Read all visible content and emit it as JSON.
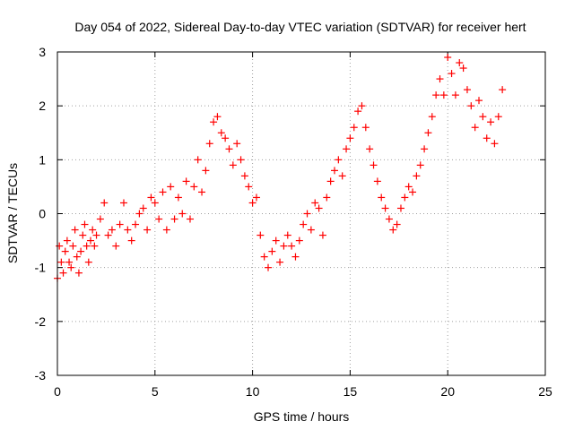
{
  "chart_data": {
    "type": "scatter",
    "title": "Day 054 of 2022, Sidereal Day-to-day VTEC variation (SDTVAR) for receiver hert",
    "xlabel": "GPS time / hours",
    "ylabel": "SDTVAR / TECUs",
    "xlim": [
      0,
      25
    ],
    "ylim": [
      -3,
      3
    ],
    "xticks": [
      0,
      5,
      10,
      15,
      20,
      25
    ],
    "yticks": [
      -3,
      -2,
      -1,
      0,
      1,
      2,
      3
    ],
    "grid": true,
    "marker": "+",
    "series": [
      {
        "name": "SDTVAR",
        "color": "#ff0000",
        "x": [
          0.0,
          0.1,
          0.2,
          0.3,
          0.4,
          0.5,
          0.6,
          0.7,
          0.8,
          0.9,
          1.0,
          1.1,
          1.2,
          1.3,
          1.4,
          1.5,
          1.6,
          1.7,
          1.8,
          1.9,
          2.0,
          2.2,
          2.4,
          2.6,
          2.8,
          3.0,
          3.2,
          3.4,
          3.6,
          3.8,
          4.0,
          4.2,
          4.4,
          4.6,
          4.8,
          5.0,
          5.2,
          5.4,
          5.6,
          5.8,
          6.0,
          6.2,
          6.4,
          6.6,
          6.8,
          7.0,
          7.2,
          7.4,
          7.6,
          7.8,
          8.0,
          8.2,
          8.4,
          8.6,
          8.8,
          9.0,
          9.2,
          9.4,
          9.6,
          9.8,
          10.0,
          10.2,
          10.4,
          10.6,
          10.8,
          11.0,
          11.2,
          11.4,
          11.6,
          11.8,
          12.0,
          12.2,
          12.4,
          12.6,
          12.8,
          13.0,
          13.2,
          13.4,
          13.6,
          13.8,
          14.0,
          14.2,
          14.4,
          14.6,
          14.8,
          15.0,
          15.2,
          15.4,
          15.6,
          15.8,
          16.0,
          16.2,
          16.4,
          16.6,
          16.8,
          17.0,
          17.2,
          17.4,
          17.6,
          17.8,
          18.0,
          18.2,
          18.4,
          18.6,
          18.8,
          19.0,
          19.2,
          19.4,
          19.6,
          19.8,
          20.0,
          20.2,
          20.4,
          20.6,
          20.8,
          21.0,
          21.2,
          21.4,
          21.6,
          21.8,
          22.0,
          22.2,
          22.4,
          22.6,
          22.8
        ],
        "y": [
          -1.2,
          -0.6,
          -0.9,
          -1.1,
          -0.7,
          -0.5,
          -0.9,
          -1.0,
          -0.6,
          -0.3,
          -0.8,
          -1.1,
          -0.7,
          -0.4,
          -0.2,
          -0.6,
          -0.9,
          -0.5,
          -0.3,
          -0.6,
          -0.4,
          -0.1,
          0.2,
          -0.4,
          -0.3,
          -0.6,
          -0.2,
          0.2,
          -0.3,
          -0.5,
          -0.2,
          0.0,
          0.1,
          -0.3,
          0.3,
          0.2,
          -0.1,
          0.4,
          -0.3,
          0.5,
          -0.1,
          0.3,
          0.0,
          0.6,
          -0.1,
          0.5,
          1.0,
          0.4,
          0.8,
          1.3,
          1.7,
          1.8,
          1.5,
          1.4,
          1.2,
          0.9,
          1.3,
          1.0,
          0.7,
          0.5,
          0.2,
          0.3,
          -0.4,
          -0.8,
          -1.0,
          -0.7,
          -0.5,
          -0.9,
          -0.6,
          -0.4,
          -0.6,
          -0.8,
          -0.5,
          -0.2,
          0.0,
          -0.3,
          0.2,
          0.1,
          -0.4,
          0.3,
          0.6,
          0.8,
          1.0,
          0.7,
          1.2,
          1.4,
          1.6,
          1.9,
          2.0,
          1.6,
          1.2,
          0.9,
          0.6,
          0.3,
          0.1,
          -0.1,
          -0.3,
          -0.2,
          0.1,
          0.3,
          0.5,
          0.4,
          0.7,
          0.9,
          1.2,
          1.5,
          1.8,
          2.2,
          2.5,
          2.2,
          2.9,
          2.6,
          2.2,
          2.8,
          2.7,
          2.3,
          2.0,
          1.6,
          2.1,
          1.8,
          1.4,
          1.7,
          1.3,
          1.8,
          2.3
        ]
      }
    ]
  }
}
